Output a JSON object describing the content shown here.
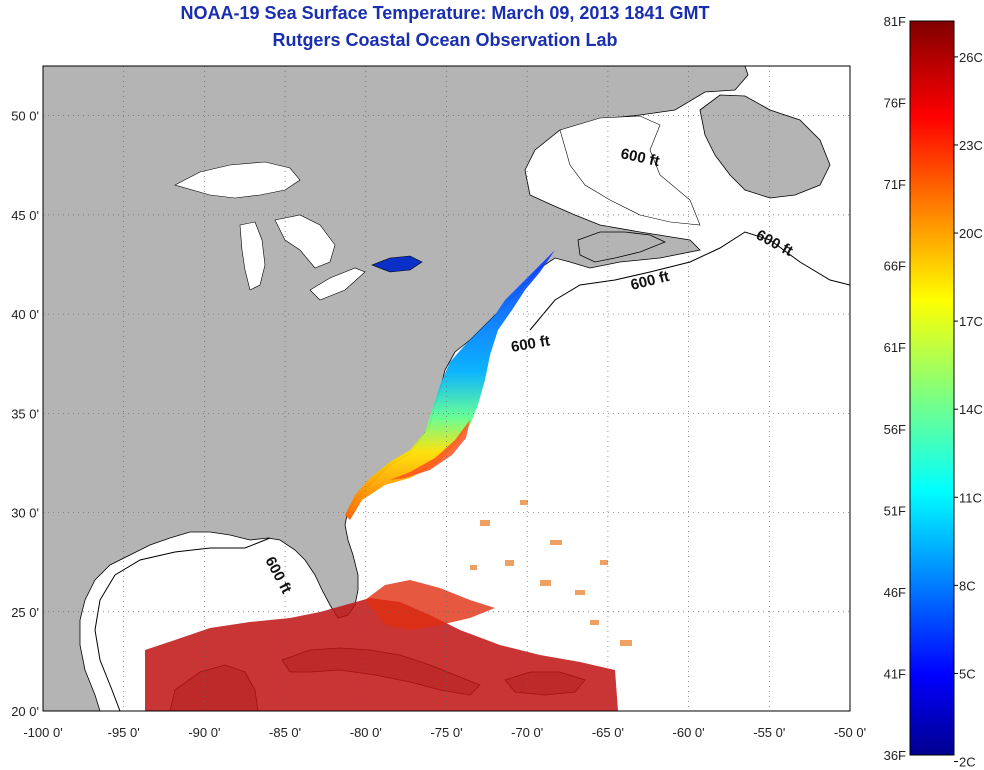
{
  "title": "NOAA-19 Sea Surface Temperature:  March 09, 2013 1841 GMT",
  "subtitle": "Rutgers Coastal Ocean Observation Lab",
  "map": {
    "lon_range": [
      -100,
      -50
    ],
    "lat_range": [
      20,
      52.5
    ],
    "lon_ticks": [
      "-100 0'",
      "-95 0'",
      "-90 0'",
      "-85 0'",
      "-80 0'",
      "-75 0'",
      "-70 0'",
      "-65 0'",
      "-60 0'",
      "-55 0'",
      "-50 0'"
    ],
    "lat_ticks": [
      "20 0'",
      "25 0'",
      "30 0'",
      "35 0'",
      "40 0'",
      "45 0'",
      "50 0'"
    ],
    "land_color": "#b4b4b4",
    "water_color": "#ffffff",
    "grid": "dotted"
  },
  "contours": [
    {
      "label": "600 ft"
    },
    {
      "label": "600 ft"
    },
    {
      "label": "600 ft"
    },
    {
      "label": "600 ft"
    },
    {
      "label": "600 ft"
    }
  ],
  "colorbar": {
    "fahrenheit_labels": [
      "81F",
      "76F",
      "71F",
      "66F",
      "61F",
      "56F",
      "51F",
      "46F",
      "41F",
      "36F"
    ],
    "celsius_labels": [
      "26C",
      "23C",
      "20C",
      "17C",
      "14C",
      "11C",
      "8C",
      "5C",
      "2C"
    ],
    "colormap": "jet"
  }
}
